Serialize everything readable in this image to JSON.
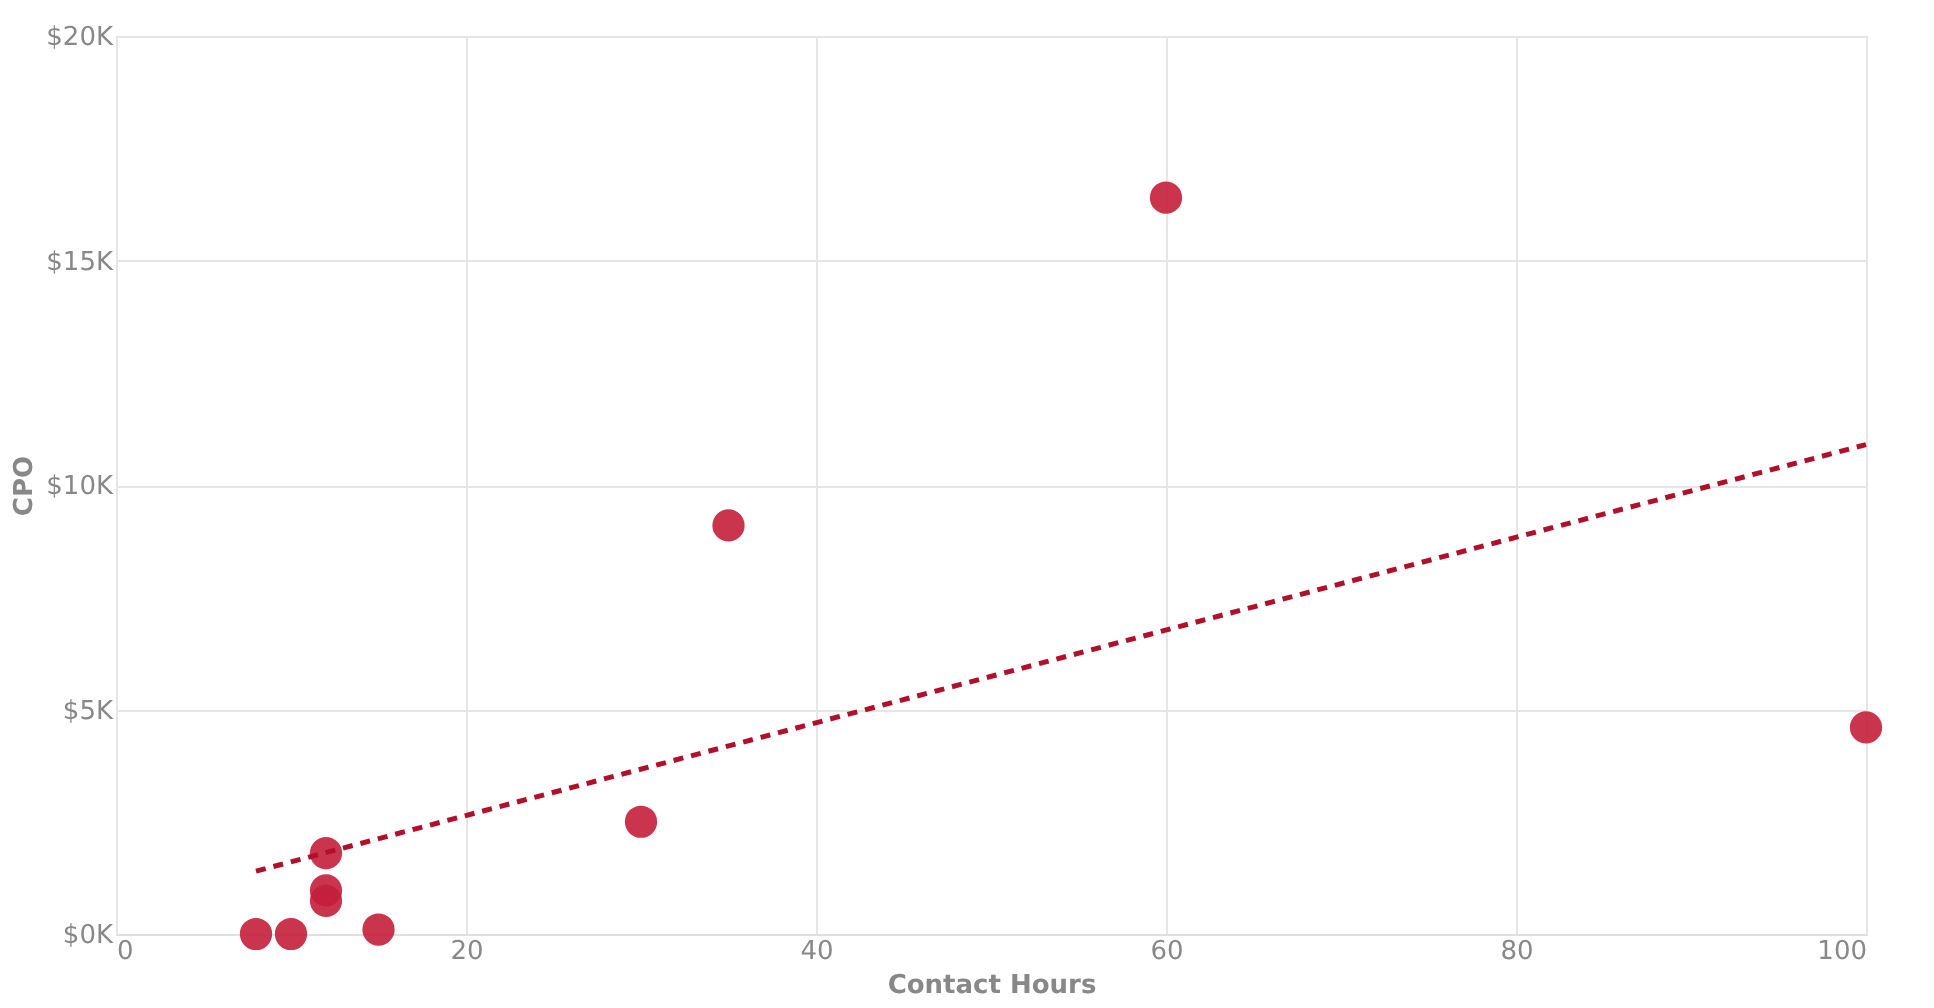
{
  "chart_data": {
    "type": "scatter",
    "xlabel": "Contact Hours",
    "ylabel": "CPO",
    "xlim": [
      0,
      100
    ],
    "xticks": [
      0,
      20,
      40,
      60,
      80,
      100
    ],
    "ylim": [
      0,
      20000
    ],
    "yticks": [
      {
        "value": 0,
        "label": "$0K"
      },
      {
        "value": 5000,
        "label": "$5K"
      },
      {
        "value": 10000,
        "label": "$10K"
      },
      {
        "value": 15000,
        "label": "$15K"
      },
      {
        "value": 20000,
        "label": "$20K"
      }
    ],
    "grid": true,
    "series": [
      {
        "color": "#c41e3a",
        "marker": "circle",
        "x": [
          8,
          10,
          12,
          12,
          12,
          15,
          30,
          35,
          60,
          100
        ],
        "values": [
          0,
          0,
          1800,
          970,
          740,
          100,
          2500,
          9100,
          16400,
          4600
        ]
      },
      {
        "type": "line",
        "color": "#b0102a",
        "line_style": "dashed",
        "x": [
          8,
          100
        ],
        "values": [
          1400,
          10900
        ]
      }
    ]
  }
}
